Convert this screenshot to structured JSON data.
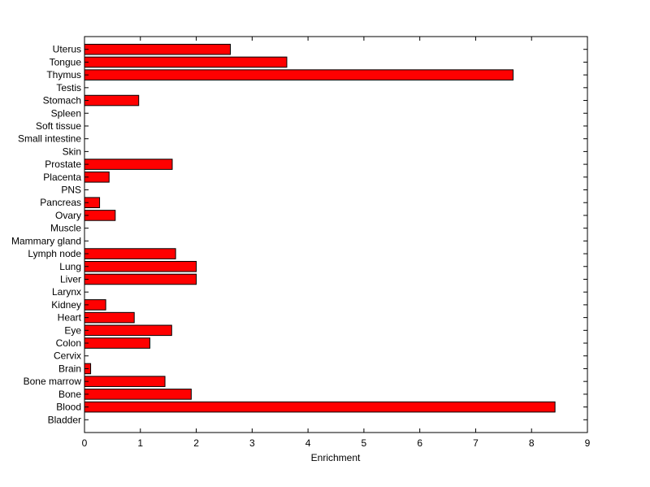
{
  "chart_data": {
    "type": "bar",
    "orientation": "horizontal",
    "xlabel": "Enrichment",
    "xlim": [
      0,
      9
    ],
    "xticks": [
      0,
      1,
      2,
      3,
      4,
      5,
      6,
      7,
      8,
      9
    ],
    "grid": false,
    "bar_color": "#ff0000",
    "categories": [
      "Bladder",
      "Blood",
      "Bone",
      "Bone marrow",
      "Brain",
      "Cervix",
      "Colon",
      "Eye",
      "Heart",
      "Kidney",
      "Larynx",
      "Liver",
      "Lung",
      "Lymph node",
      "Mammary gland",
      "Muscle",
      "Ovary",
      "Pancreas",
      "PNS",
      "Placenta",
      "Prostate",
      "Skin",
      "Small intestine",
      "Soft tissue",
      "Spleen",
      "Stomach",
      "Testis",
      "Thymus",
      "Tongue",
      "Uterus"
    ],
    "values": [
      0,
      8.42,
      1.91,
      1.44,
      0.11,
      0,
      1.17,
      1.56,
      0.89,
      0.38,
      0,
      2.0,
      2.0,
      1.63,
      0,
      0,
      0.55,
      0.27,
      0,
      0.44,
      1.57,
      0,
      0,
      0,
      0,
      0.97,
      0,
      7.67,
      3.62,
      2.61
    ]
  }
}
